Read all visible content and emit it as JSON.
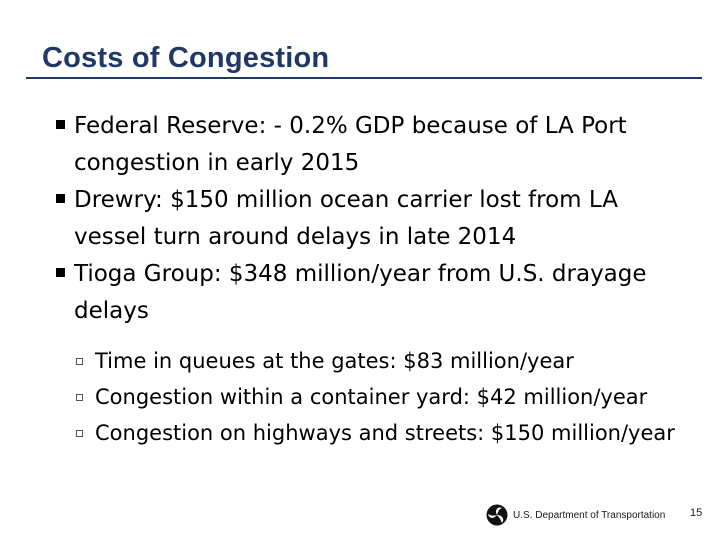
{
  "slide": {
    "title": "Costs of Congestion"
  },
  "bullets": [
    "Federal Reserve:  - 0.2% GDP because of LA Port congestion in early 2015",
    "Drewry:  $150 million ocean carrier lost from LA vessel turn around delays in late 2014",
    "Tioga Group:  $348 million/year from U.S. drayage delays"
  ],
  "sub_bullets": [
    "Time in queues at the gates: $83 million/year",
    "Congestion within a container yard: $42 million/year",
    "Congestion on highways and streets: $150 million/year"
  ],
  "footer": {
    "department": "U.S. Department of Transportation",
    "page_number": "15",
    "logo_icon": "dot-triskelion-logo"
  },
  "colors": {
    "title": "#1f3864",
    "rule": "#1f3864",
    "text": "#000000"
  }
}
